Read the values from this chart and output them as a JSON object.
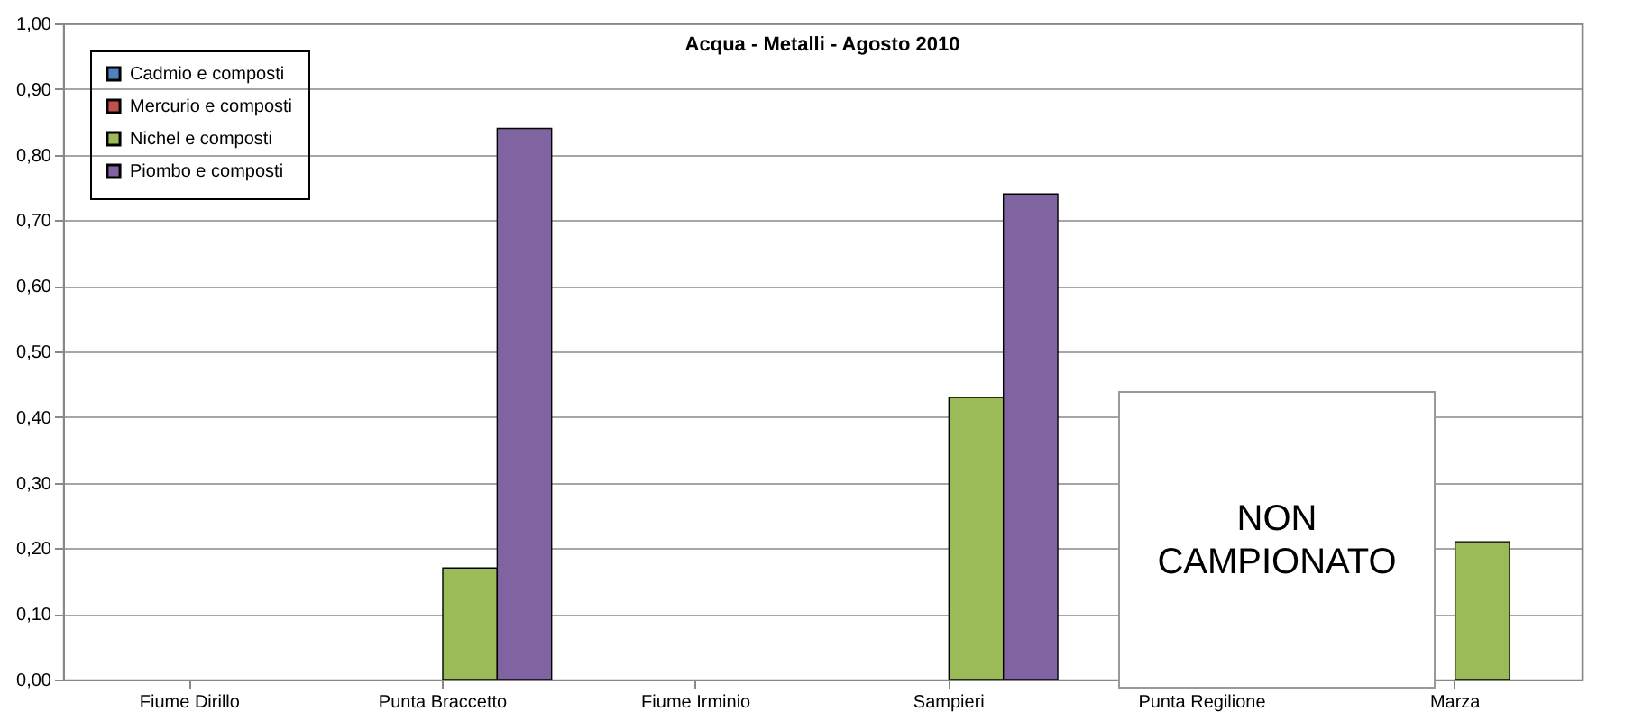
{
  "chart_data": {
    "type": "bar",
    "title": "Acqua - Metalli - Agosto 2010",
    "categories": [
      "Fiume Dirillo",
      "Punta Braccetto",
      "Fiume Irminio",
      "Sampieri",
      "Punta Regilione",
      "Marza"
    ],
    "series": [
      {
        "name": "Cadmio e composti",
        "color": "#4f81bd",
        "values": [
          null,
          null,
          null,
          null,
          null,
          null
        ]
      },
      {
        "name": "Mercurio e composti",
        "color": "#c0504d",
        "values": [
          null,
          null,
          null,
          null,
          null,
          null
        ]
      },
      {
        "name": "Nichel e composti",
        "color": "#9bbb59",
        "values": [
          null,
          0.17,
          null,
          0.43,
          null,
          0.21
        ]
      },
      {
        "name": "Piombo e composti",
        "color": "#8064a2",
        "values": [
          null,
          0.84,
          null,
          0.74,
          null,
          null
        ]
      }
    ],
    "ylim": [
      0,
      1
    ],
    "yticks": [
      {
        "value": 0,
        "label": "0,00"
      },
      {
        "value": 0.1,
        "label": "0,10"
      },
      {
        "value": 0.2,
        "label": "0,20"
      },
      {
        "value": 0.3,
        "label": "0,30"
      },
      {
        "value": 0.4,
        "label": "0,40"
      },
      {
        "value": 0.5,
        "label": "0,50"
      },
      {
        "value": 0.6,
        "label": "0,60"
      },
      {
        "value": 0.7,
        "label": "0,70"
      },
      {
        "value": 0.8,
        "label": "0,80"
      },
      {
        "value": 0.9,
        "label": "0,90"
      },
      {
        "value": 1,
        "label": "1,00"
      }
    ],
    "grid": "y",
    "legend": "top left",
    "annotations": [
      "NON CAMPIONATO"
    ]
  }
}
